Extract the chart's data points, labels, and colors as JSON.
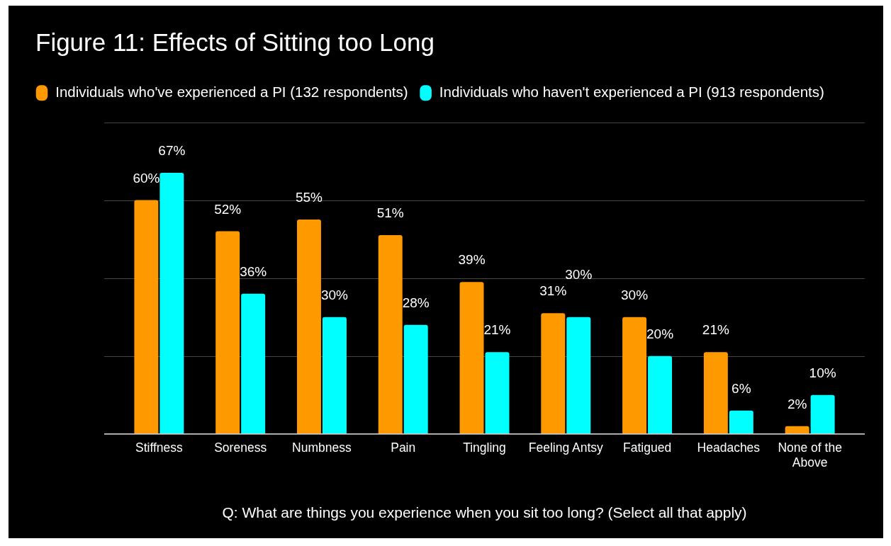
{
  "chart_data": {
    "type": "bar",
    "title": "Figure 11: Effects of Sitting too Long",
    "xlabel": "Q: What are things you experience when you sit too long? (Select all that apply)",
    "categories": [
      "Stiffness",
      "Soreness",
      "Numbness",
      "Pain",
      "Tingling",
      "Feeling Antsy",
      "Fatigued",
      "Headaches",
      "None of the Above"
    ],
    "series": [
      {
        "name": "Individuals who've experienced a PI (132 respondents)",
        "color": "#ff9900",
        "values": [
          60,
          52,
          55,
          51,
          39,
          31,
          30,
          21,
          2
        ],
        "value_labels": [
          "60%",
          "52%",
          "55%",
          "51%",
          "39%",
          "31%",
          "30%",
          "21%",
          "2%"
        ]
      },
      {
        "name": "Individuals who haven't experienced a PI (913 respondents)",
        "color": "#00ffff",
        "values": [
          67,
          36,
          30,
          28,
          21,
          30,
          20,
          6,
          10
        ],
        "value_labels": [
          "67%",
          "36%",
          "30%",
          "28%",
          "21%",
          "30%",
          "20%",
          "6%",
          "10%"
        ]
      }
    ],
    "ylim": [
      0,
      80
    ],
    "yticks": [
      {
        "value": 0,
        "label": null
      },
      {
        "value": 20,
        "label": null
      },
      {
        "value": 40,
        "label": null
      },
      {
        "value": 60,
        "label": null
      },
      {
        "value": 80,
        "label": null
      }
    ],
    "tick_labels": "x",
    "grid": "y",
    "legend": "top left"
  }
}
